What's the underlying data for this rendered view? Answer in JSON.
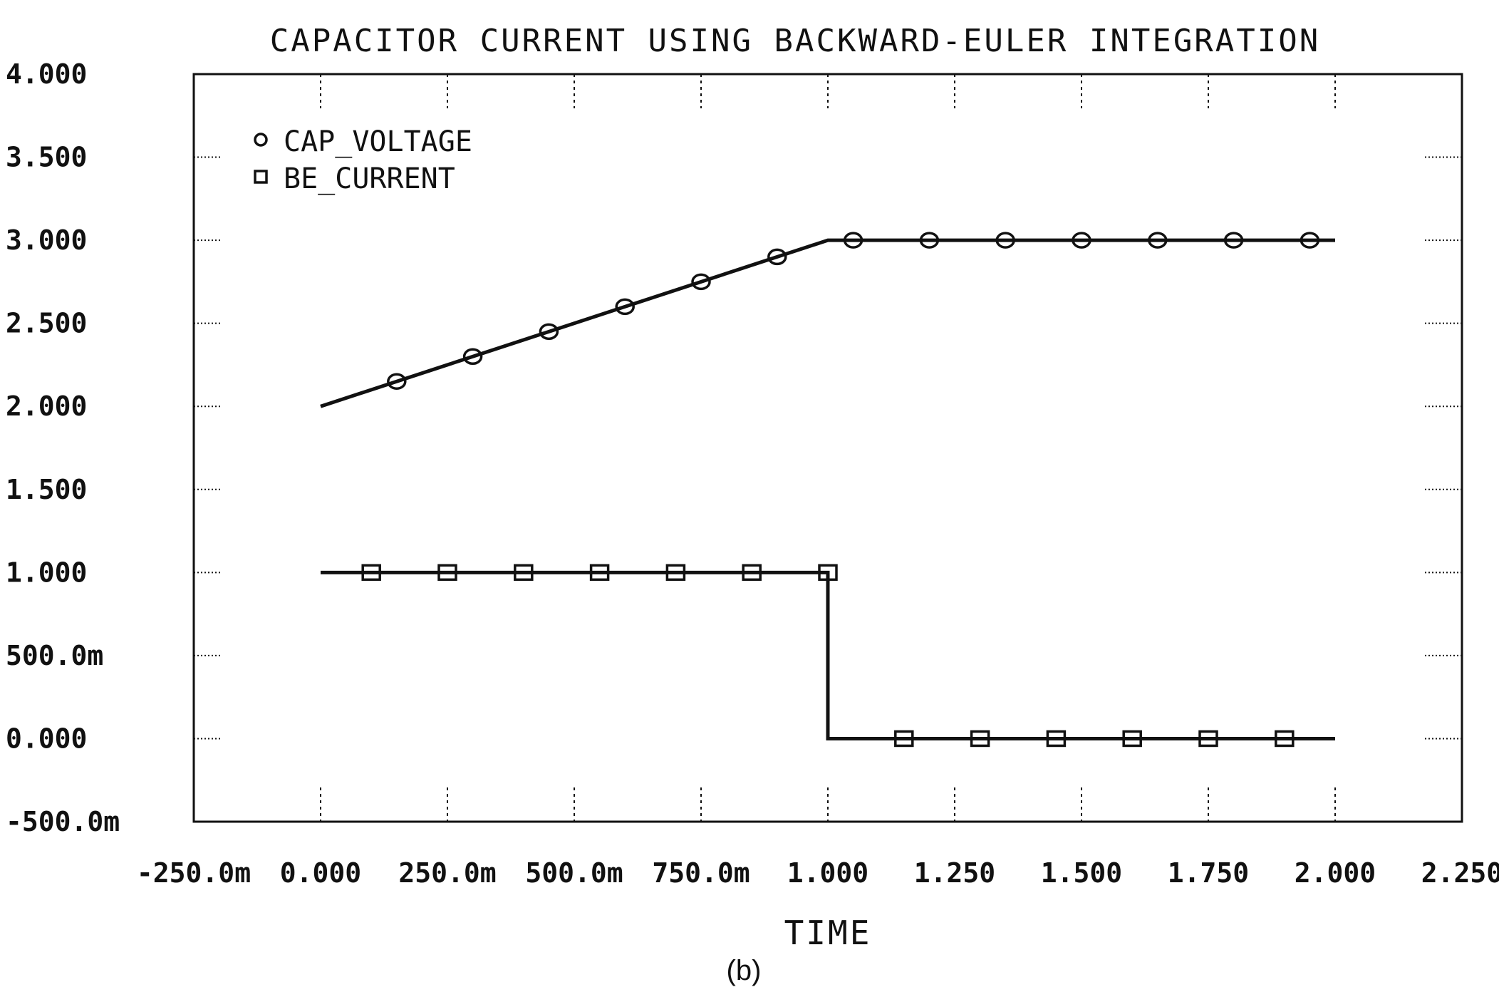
{
  "chart_data": {
    "type": "line",
    "title": "CAPACITOR CURRENT USING BACKWARD-EULER INTEGRATION",
    "xlabel": "TIME",
    "ylabel": "",
    "caption": "(b)",
    "xlim": [
      -0.25,
      2.25
    ],
    "ylim": [
      -0.5,
      4.0
    ],
    "x_ticks": [
      -0.25,
      0,
      0.25,
      0.5,
      0.75,
      1.0,
      1.25,
      1.5,
      1.75,
      2.0,
      2.25
    ],
    "x_tick_labels": [
      "-250.0m",
      "0.000",
      "250.0m",
      "500.0m",
      "750.0m",
      "1.000",
      "1.250",
      "1.500",
      "1.750",
      "2.000",
      "2.250"
    ],
    "y_ticks": [
      4.0,
      3.5,
      3.0,
      2.5,
      2.0,
      1.5,
      1.0,
      0.5,
      0.0,
      -0.5
    ],
    "y_tick_labels": [
      "4.000",
      "3.500",
      "3.000",
      "2.500",
      "2.000",
      "1.500",
      "1.000",
      "500.0m",
      "0.000",
      "-500.0m"
    ],
    "grid": "dotted tick marks",
    "legend_position": "top-left",
    "series": [
      {
        "name": "CAP_VOLTAGE",
        "marker": "circle",
        "line": [
          [
            0,
            2.0
          ],
          [
            1.0,
            3.0
          ],
          [
            2.0,
            3.0
          ]
        ],
        "markers": [
          [
            0.15,
            2.15
          ],
          [
            0.3,
            2.3
          ],
          [
            0.45,
            2.45
          ],
          [
            0.6,
            2.6
          ],
          [
            0.75,
            2.75
          ],
          [
            0.9,
            2.9
          ],
          [
            1.05,
            3.0
          ],
          [
            1.2,
            3.0
          ],
          [
            1.35,
            3.0
          ],
          [
            1.5,
            3.0
          ],
          [
            1.65,
            3.0
          ],
          [
            1.8,
            3.0
          ],
          [
            1.95,
            3.0
          ]
        ]
      },
      {
        "name": "BE_CURRENT",
        "marker": "square",
        "line": [
          [
            0,
            1.0
          ],
          [
            1.0,
            1.0
          ],
          [
            1.0,
            0.0
          ],
          [
            2.0,
            0.0
          ]
        ],
        "markers": [
          [
            0.1,
            1.0
          ],
          [
            0.25,
            1.0
          ],
          [
            0.4,
            1.0
          ],
          [
            0.55,
            1.0
          ],
          [
            0.7,
            1.0
          ],
          [
            0.85,
            1.0
          ],
          [
            1.0,
            1.0
          ],
          [
            1.15,
            0.0
          ],
          [
            1.3,
            0.0
          ],
          [
            1.45,
            0.0
          ],
          [
            1.6,
            0.0
          ],
          [
            1.75,
            0.0
          ],
          [
            1.9,
            0.0
          ]
        ]
      }
    ]
  }
}
